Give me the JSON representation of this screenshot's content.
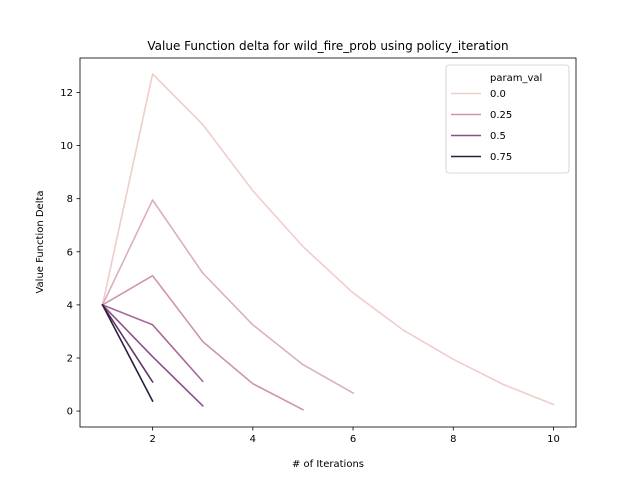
{
  "chart_data": {
    "type": "line",
    "title": "Value Function delta for wild_fire_prob using policy_iteration",
    "xlabel": "# of Iterations",
    "ylabel": "Value Function Delta",
    "xlim": [
      0.55,
      10.45
    ],
    "ylim": [
      -0.6,
      13.3
    ],
    "xticks": [
      2,
      4,
      6,
      8,
      10
    ],
    "yticks": [
      0,
      2,
      4,
      6,
      8,
      10,
      12
    ],
    "legend": {
      "title": "param_val",
      "placement": "upper-right",
      "entries": [
        "0.0",
        "0.25",
        "0.5",
        "0.75"
      ]
    },
    "legend_colors": [
      "#efcdca",
      "#cf93ae",
      "#8a4f86",
      "#2c1e3d"
    ],
    "series": [
      {
        "color": "#efcdca",
        "x": [
          1,
          2,
          3,
          4,
          5,
          6,
          7,
          8,
          9,
          10
        ],
        "y": [
          4.0,
          12.7,
          10.8,
          8.3,
          6.2,
          4.45,
          3.05,
          1.95,
          1.0,
          0.25
        ]
      },
      {
        "color": "#ddafbd",
        "x": [
          1,
          2,
          3,
          4,
          5,
          6
        ],
        "y": [
          4.0,
          7.95,
          5.2,
          3.25,
          1.75,
          0.68
        ]
      },
      {
        "color": "#cf93ae",
        "x": [
          1,
          2,
          3,
          4,
          5
        ],
        "y": [
          4.0,
          5.1,
          2.62,
          1.03,
          0.05
        ]
      },
      {
        "color": "#a8699a",
        "x": [
          1,
          2,
          3
        ],
        "y": [
          4.0,
          3.25,
          1.12
        ]
      },
      {
        "color": "#8a4f86",
        "x": [
          1,
          2,
          3
        ],
        "y": [
          4.0,
          2.05,
          0.2
        ]
      },
      {
        "color": "#5c3566",
        "x": [
          1,
          2
        ],
        "y": [
          4.0,
          1.1
        ]
      },
      {
        "color": "#2c1e3d",
        "x": [
          1,
          2
        ],
        "y": [
          4.0,
          0.38
        ]
      }
    ]
  }
}
